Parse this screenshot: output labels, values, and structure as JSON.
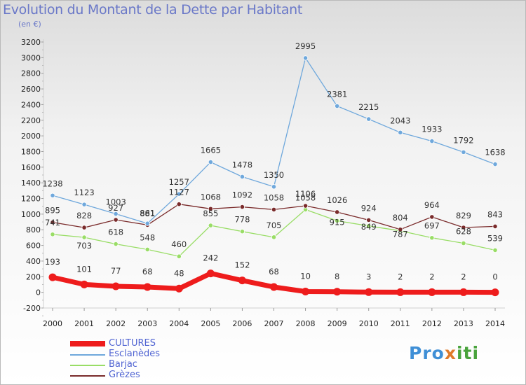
{
  "header": {
    "title": "Evolution du Montant de la Dette par Habitant",
    "subtitle": "(en €)"
  },
  "logo": {
    "text": "Proxiti",
    "parts": [
      "Pro",
      "x",
      "iti"
    ]
  },
  "chart_data": {
    "type": "line",
    "title": "Evolution du Montant de la Dette par Habitant",
    "subtitle": "(en €)",
    "x": [
      2000,
      2001,
      2002,
      2003,
      2004,
      2005,
      2006,
      2007,
      2008,
      2009,
      2010,
      2011,
      2012,
      2013,
      2014
    ],
    "ylim": [
      -200,
      3200
    ],
    "yticks": [
      -200,
      0,
      200,
      400,
      600,
      800,
      1000,
      1200,
      1400,
      1600,
      1800,
      2000,
      2200,
      2400,
      2600,
      2800,
      3000,
      3200
    ],
    "grid": false,
    "legend_position": "bottom-left",
    "series": [
      {
        "name": "CULTURES",
        "color": "#ee1c1c",
        "values": [
          193,
          101,
          77,
          68,
          48,
          242,
          152,
          68,
          10,
          8,
          3,
          2,
          2,
          2,
          0
        ]
      },
      {
        "name": "Esclanèdes",
        "color": "#6fa8dc",
        "values": [
          1238,
          1123,
          1003,
          881,
          1257,
          1665,
          1478,
          1350,
          2995,
          2381,
          2215,
          2043,
          1933,
          1792,
          1638
        ]
      },
      {
        "name": "Barjac",
        "color": "#99dd66",
        "values": [
          741,
          703,
          618,
          548,
          460,
          855,
          778,
          705,
          1058,
          915,
          849,
          787,
          697,
          628,
          539
        ]
      },
      {
        "name": "Grèzes",
        "color": "#7a2b2b",
        "values": [
          895,
          828,
          927,
          861,
          1127,
          1068,
          1092,
          1058,
          1106,
          1026,
          924,
          804,
          964,
          829,
          843
        ]
      }
    ],
    "label_offsets": {
      "CULTURES": [
        -18,
        -18,
        -18,
        -18,
        -18,
        -18,
        -18,
        -18,
        -18,
        -18,
        -18,
        -18,
        -18,
        -18,
        -18
      ],
      "Esclanèdes": [
        -13,
        -13,
        -13,
        -10,
        -13,
        -13,
        -13,
        -13,
        -13,
        -13,
        -13,
        -13,
        -13,
        -13,
        -13
      ],
      "Barjac": [
        -13,
        16,
        -13,
        -13,
        -13,
        -13,
        -13,
        -13,
        -13,
        6,
        5,
        9,
        -13,
        -13,
        -13
      ],
      "Grèzes": [
        -13,
        -13,
        -13,
        -13,
        -13,
        -13,
        -13,
        -13,
        -13,
        -13,
        -13,
        -13,
        -13,
        -13,
        -13
      ]
    }
  }
}
